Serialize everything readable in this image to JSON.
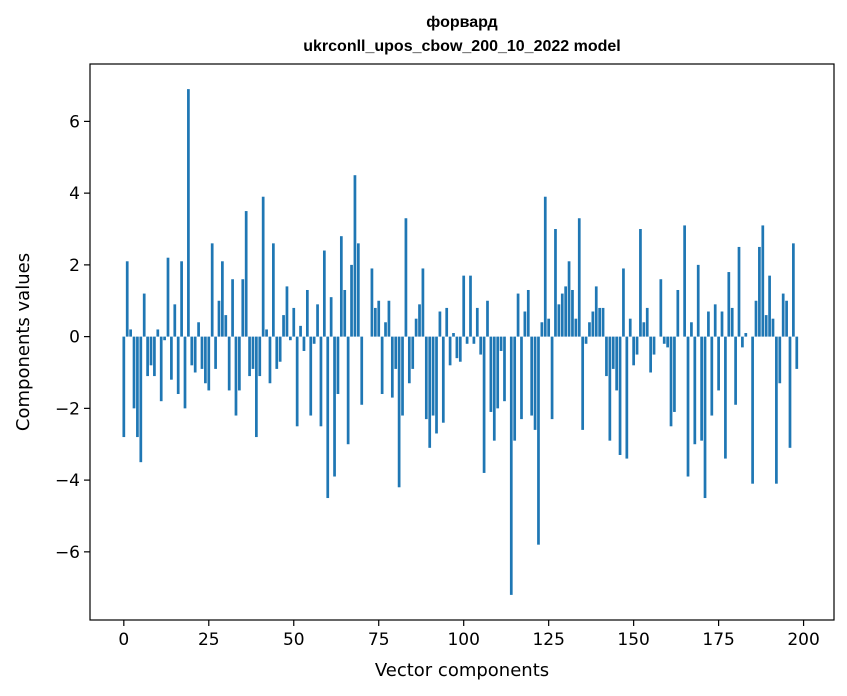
{
  "chart_data": {
    "type": "bar",
    "title_line1": "форвард",
    "title_line2": "ukrconll_upos_cbow_200_10_2022 model",
    "xlabel": "Vector components",
    "ylabel": "Components values",
    "xlim": [
      -9.95,
      208.95
    ],
    "ylim": [
      -7.9,
      7.6
    ],
    "x_ticks": [
      0,
      25,
      50,
      75,
      100,
      125,
      150,
      175,
      200
    ],
    "y_ticks": [
      -6,
      -4,
      -2,
      0,
      2,
      4,
      6
    ],
    "x_tick_labels": [
      "0",
      "25",
      "50",
      "75",
      "100",
      "125",
      "150",
      "175",
      "200"
    ],
    "y_tick_labels": [
      "−6",
      "−4",
      "−2",
      "0",
      "2",
      "4",
      "6"
    ],
    "bar_color": "#1f77b4",
    "grid": false,
    "values": [
      -2.8,
      2.1,
      0.2,
      -2.0,
      -2.8,
      -3.5,
      1.2,
      -1.1,
      -0.8,
      -1.1,
      0.2,
      -1.8,
      -0.1,
      2.2,
      -1.2,
      0.9,
      -1.6,
      2.1,
      -2.0,
      6.9,
      -0.8,
      -1.0,
      0.4,
      -0.9,
      -1.3,
      -1.5,
      2.6,
      -0.9,
      1.0,
      2.1,
      0.6,
      -1.5,
      1.6,
      -2.2,
      -1.5,
      1.6,
      3.5,
      -1.1,
      -0.9,
      -2.8,
      -1.1,
      3.9,
      0.2,
      -1.3,
      2.6,
      -0.9,
      -0.7,
      0.6,
      1.4,
      -0.1,
      0.8,
      -2.5,
      0.3,
      -0.4,
      1.3,
      -2.2,
      -0.2,
      0.9,
      -2.5,
      2.4,
      -4.5,
      1.1,
      -3.9,
      -1.6,
      2.8,
      1.3,
      -3.0,
      2.0,
      4.5,
      2.6,
      -1.9,
      0.0,
      0.0,
      1.9,
      0.8,
      1.0,
      -1.6,
      0.4,
      1.0,
      -1.7,
      -0.9,
      -4.2,
      -2.2,
      3.3,
      -1.3,
      -0.9,
      0.5,
      0.9,
      1.9,
      -2.3,
      -3.1,
      -2.2,
      -2.7,
      0.7,
      -2.4,
      0.8,
      -0.8,
      0.1,
      -0.6,
      -0.7,
      1.7,
      -0.2,
      1.7,
      -0.2,
      0.8,
      -0.5,
      -3.8,
      1.0,
      -2.1,
      -2.9,
      -2.0,
      -0.4,
      -1.8,
      0.0,
      -7.2,
      -2.9,
      1.2,
      -2.3,
      0.7,
      1.3,
      -2.2,
      -2.6,
      -5.8,
      0.4,
      3.9,
      0.5,
      -2.3,
      3.0,
      0.9,
      1.2,
      1.4,
      2.1,
      1.3,
      0.5,
      3.3,
      -2.6,
      -0.2,
      0.4,
      0.7,
      1.4,
      0.8,
      0.8,
      -1.1,
      -2.9,
      -0.9,
      -1.5,
      -3.3,
      1.9,
      -3.4,
      0.5,
      -0.8,
      -0.5,
      3.0,
      0.4,
      0.8,
      -1.0,
      -0.5,
      0.0,
      1.6,
      -0.2,
      -0.3,
      -2.5,
      -2.1,
      1.3,
      0.0,
      3.1,
      -3.9,
      0.4,
      -3.0,
      2.0,
      -2.9,
      -4.5,
      0.7,
      -2.2,
      0.9,
      -1.5,
      0.7,
      -3.4,
      1.8,
      0.8,
      -1.9,
      2.5,
      -0.3,
      0.1,
      0.0,
      -4.1,
      1.0,
      2.5,
      3.1,
      0.6,
      1.7,
      0.5,
      -4.1,
      -1.3,
      1.2,
      1.0,
      -3.1,
      2.6,
      -0.9
    ]
  }
}
